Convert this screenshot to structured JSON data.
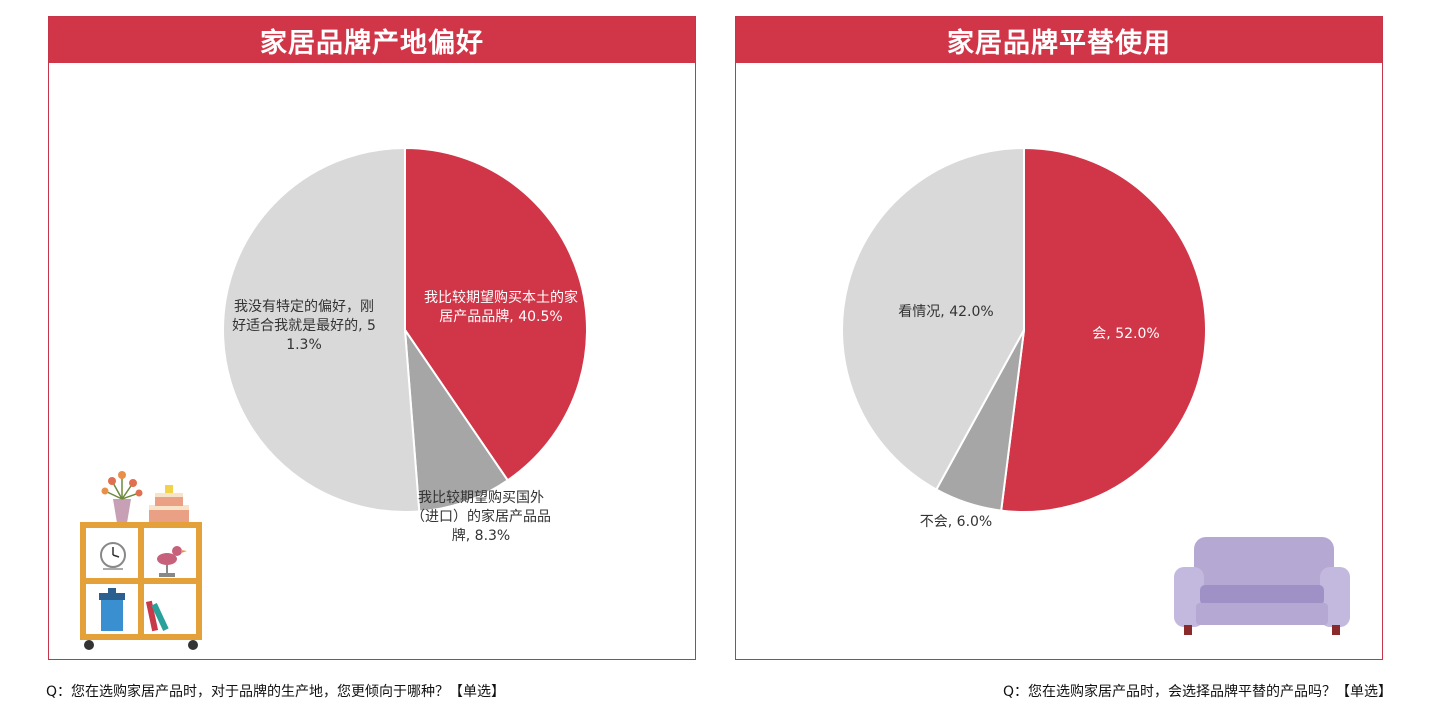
{
  "chart_data": [
    {
      "type": "pie",
      "title": "家居品牌产地偏好",
      "slices": [
        {
          "label": "我比较期望购买本土的家居产品品牌",
          "value": 40.5,
          "value_label": "40.5%",
          "color": "#d13548"
        },
        {
          "label": "我比较期望购买国外（进口）的家居产品品牌",
          "value": 8.3,
          "value_label": "8.3%",
          "color": "#a6a6a6"
        },
        {
          "label": "我没有特定的偏好，刚好适合我就是最好的",
          "value": 51.3,
          "value_label": "51.3%",
          "color": "#d9d9d9"
        }
      ],
      "question": "Q：您在选购家居产品时，对于品牌的生产地，您更倾向于哪种？【单选】"
    },
    {
      "type": "pie",
      "title": "家居品牌平替使用",
      "slices": [
        {
          "label": "会",
          "value": 52.0,
          "value_label": "52.0%",
          "color": "#d13548"
        },
        {
          "label": "不会",
          "value": 6.0,
          "value_label": "6.0%",
          "color": "#a6a6a6"
        },
        {
          "label": "看情况",
          "value": 42.0,
          "value_label": "42.0%",
          "color": "#d9d9d9"
        }
      ],
      "question": "Q：您在选购家居产品时，会选择品牌平替的产品吗？【单选】"
    }
  ],
  "decorations": {
    "left": "shelf-illustration",
    "right": "sofa-illustration"
  }
}
